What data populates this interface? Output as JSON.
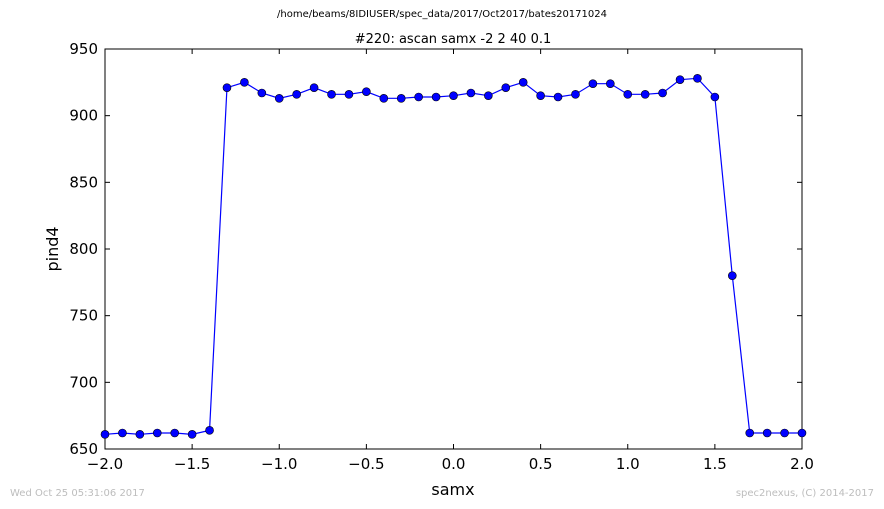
{
  "figure": {
    "suptitle": "/home/beams/8IDIUSER/spec_data/2017/Oct2017/bates20171024",
    "timestamp": "Wed Oct 25 05:31:06 2017",
    "credit": "spec2nexus, (C) 2014-2017"
  },
  "colors": {
    "series_line": "#0000ff",
    "series_marker": "#0000ff",
    "axes": "#000000",
    "footer_text": "#bdbdbd"
  },
  "chart_data": {
    "type": "line",
    "title": "#220: ascan  samx -2 2  40 0.1",
    "xlabel": "samx",
    "ylabel": "pind4",
    "xlim": [
      -2.0,
      2.0
    ],
    "ylim": [
      650,
      950
    ],
    "grid": false,
    "legend": "none",
    "x_ticks": [
      -2.0,
      -1.5,
      -1.0,
      -0.5,
      0.0,
      0.5,
      1.0,
      1.5,
      2.0
    ],
    "x_tick_labels": [
      "−2.0",
      "−1.5",
      "−1.0",
      "−0.5",
      "0.0",
      "0.5",
      "1.0",
      "1.5",
      "2.0"
    ],
    "y_ticks": [
      650,
      700,
      750,
      800,
      850,
      900,
      950
    ],
    "y_tick_labels": [
      "650",
      "700",
      "750",
      "800",
      "850",
      "900",
      "950"
    ],
    "series": [
      {
        "x": [
          -2.0,
          -1.9,
          -1.8,
          -1.7,
          -1.6,
          -1.5,
          -1.4,
          -1.3,
          -1.2,
          -1.1,
          -1.0,
          -0.9,
          -0.8,
          -0.7,
          -0.6,
          -0.5,
          -0.4,
          -0.3,
          -0.2,
          -0.1,
          0.0,
          0.1,
          0.2,
          0.3,
          0.4,
          0.5,
          0.6,
          0.7,
          0.8,
          0.9,
          1.0,
          1.1,
          1.2,
          1.3,
          1.4,
          1.5,
          1.6,
          1.7,
          1.8,
          1.9,
          2.0
        ],
        "y": [
          661,
          662,
          661,
          662,
          662,
          661,
          664,
          921,
          925,
          917,
          913,
          916,
          921,
          916,
          916,
          918,
          913,
          913,
          914,
          914,
          915,
          917,
          915,
          921,
          925,
          915,
          914,
          916,
          924,
          924,
          916,
          916,
          917,
          927,
          928,
          914,
          780,
          662,
          662,
          662,
          662
        ]
      }
    ]
  }
}
